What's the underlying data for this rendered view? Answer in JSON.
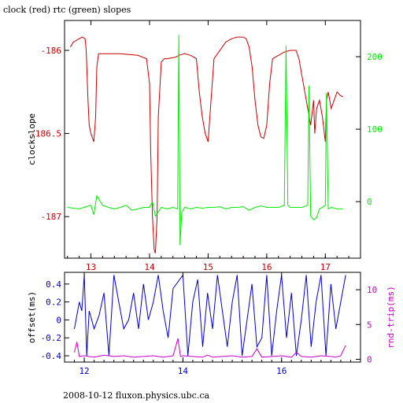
{
  "title": "clock (red) rtc (green) slopes",
  "footer": "2008-10-12 fluxon.physics.ubc.ca",
  "colors": {
    "red": "#cc0000",
    "green": "#00ee00",
    "blue": "#0000cc",
    "magenta": "#cc00cc",
    "axis": "#000000"
  },
  "chart_data": [
    {
      "type": "line",
      "xlim": [
        12.55,
        17.6
      ],
      "x_ticks": [
        "13",
        "14",
        "15",
        "16",
        "17"
      ],
      "left_axis": {
        "label": "clockslope",
        "ylim": [
          -187.25,
          -185.82
        ],
        "ticks": [
          "-186",
          "-186.5",
          "-187"
        ],
        "color": "red"
      },
      "right_axis": {
        "ylim": [
          -78,
          250
        ],
        "ticks": [
          "200",
          "100",
          "0"
        ],
        "color": "green"
      },
      "series": [
        {
          "axis": "left",
          "color": "red",
          "x": [
            12.65,
            12.7,
            12.8,
            12.85,
            12.9,
            12.92,
            12.95,
            12.97,
            13.0,
            13.05,
            13.08,
            13.1,
            13.13,
            13.2,
            13.5,
            13.8,
            13.95,
            14.0,
            14.02,
            14.05,
            14.08,
            14.1,
            14.13,
            14.15,
            14.2,
            14.25,
            14.3,
            14.45,
            14.5,
            14.6,
            14.7,
            14.8,
            14.85,
            14.9,
            14.95,
            15.0,
            15.05,
            15.1,
            15.3,
            15.4,
            15.5,
            15.6,
            15.65,
            15.7,
            15.75,
            15.8,
            15.85,
            15.9,
            15.95,
            16.0,
            16.05,
            16.1,
            16.2,
            16.25,
            16.3,
            16.4,
            16.5,
            16.55,
            16.6,
            16.7,
            16.75,
            16.8,
            16.82,
            16.85,
            16.9,
            16.95,
            17.0,
            17.02,
            17.05,
            17.1,
            17.15,
            17.2,
            17.25,
            17.3
          ],
          "y": [
            -185.98,
            -185.95,
            -185.93,
            -185.92,
            -185.93,
            -186.0,
            -186.3,
            -186.45,
            -186.5,
            -186.55,
            -186.4,
            -186.1,
            -186.02,
            -186.02,
            -186.02,
            -186.03,
            -186.05,
            -186.2,
            -186.6,
            -187.0,
            -187.2,
            -187.22,
            -187.0,
            -186.4,
            -186.07,
            -186.05,
            -186.05,
            -186.04,
            -186.03,
            -186.02,
            -186.03,
            -186.05,
            -186.25,
            -186.4,
            -186.5,
            -186.55,
            -186.3,
            -186.05,
            -185.95,
            -185.93,
            -185.92,
            -185.92,
            -185.93,
            -185.98,
            -186.1,
            -186.3,
            -186.45,
            -186.52,
            -186.53,
            -186.45,
            -186.2,
            -186.05,
            -186.03,
            -186.02,
            -186.01,
            -186.0,
            -186.0,
            -186.05,
            -186.15,
            -186.35,
            -186.45,
            -186.3,
            -186.5,
            -186.35,
            -186.3,
            -186.4,
            -186.55,
            -186.3,
            -186.25,
            -186.35,
            -186.3,
            -186.25,
            -186.27,
            -186.28
          ]
        },
        {
          "axis": "right",
          "color": "green",
          "x": [
            12.6,
            12.8,
            13.0,
            13.05,
            13.1,
            13.2,
            13.3,
            13.4,
            13.5,
            13.6,
            13.7,
            13.8,
            13.9,
            14.0,
            14.05,
            14.1,
            14.2,
            14.3,
            14.4,
            14.48,
            14.5,
            14.52,
            14.55,
            14.6,
            14.7,
            14.8,
            14.9,
            15.0,
            15.1,
            15.2,
            15.3,
            15.4,
            15.5,
            15.6,
            15.7,
            15.8,
            15.9,
            16.0,
            16.1,
            16.2,
            16.3,
            16.33,
            16.36,
            16.4,
            16.5,
            16.6,
            16.7,
            16.72,
            16.75,
            16.8,
            16.85,
            16.9,
            16.95,
            17.0,
            17.02,
            17.05,
            17.1,
            17.2,
            17.3
          ],
          "y": [
            -8,
            -10,
            -5,
            -18,
            8,
            -5,
            -8,
            -10,
            -8,
            -5,
            -12,
            -10,
            -8,
            -8,
            0,
            -20,
            -8,
            -10,
            -8,
            -10,
            230,
            -60,
            -15,
            -8,
            -10,
            -8,
            -9,
            -8,
            -8,
            -7,
            -10,
            -8,
            -8,
            -7,
            -12,
            -8,
            -6,
            -8,
            -8,
            -8,
            -5,
            215,
            -5,
            -8,
            -8,
            -8,
            -5,
            160,
            -20,
            -25,
            -22,
            -10,
            -8,
            -5,
            150,
            -10,
            -8,
            -10,
            -10
          ]
        }
      ]
    },
    {
      "type": "line",
      "xlim": [
        11.6,
        17.6
      ],
      "x_ticks": [
        "12",
        "14",
        "16"
      ],
      "left_axis": {
        "label": "offset(ms)",
        "ylim": [
          -0.47,
          0.53
        ],
        "ticks": [
          "0.4",
          "0.2",
          "0",
          "-0.2",
          "-0.4"
        ],
        "color": "blue"
      },
      "right_axis": {
        "label": "rnd-trip(ms)",
        "ylim": [
          -0.4,
          12.5
        ],
        "ticks": [
          "10",
          "5",
          "0"
        ],
        "color": "magenta"
      },
      "series": [
        {
          "axis": "left",
          "color": "blue",
          "x": [
            11.8,
            11.9,
            11.95,
            12.0,
            12.05,
            12.1,
            12.15,
            12.2,
            12.3,
            12.4,
            12.5,
            12.6,
            12.7,
            12.8,
            12.9,
            13.0,
            13.1,
            13.2,
            13.3,
            13.4,
            13.5,
            13.6,
            13.7,
            13.8,
            14.0,
            14.1,
            14.2,
            14.3,
            14.4,
            14.5,
            14.6,
            14.7,
            14.8,
            14.9,
            15.0,
            15.1,
            15.2,
            15.3,
            15.4,
            15.5,
            15.6,
            15.7,
            15.8,
            15.9,
            16.0,
            16.1,
            16.2,
            16.3,
            16.4,
            16.5,
            16.6,
            16.7,
            16.8,
            16.9,
            17.0,
            17.1,
            17.2,
            17.3
          ],
          "y": [
            -0.1,
            0.2,
            0.1,
            0.5,
            -0.4,
            0.1,
            0.0,
            -0.1,
            0.05,
            0.3,
            -0.4,
            0.5,
            0.2,
            -0.1,
            0.0,
            0.3,
            -0.1,
            0.4,
            0.0,
            0.2,
            0.5,
            0.1,
            -0.2,
            0.35,
            0.5,
            -0.4,
            0.2,
            0.45,
            -0.3,
            0.3,
            -0.1,
            0.5,
            0.1,
            -0.3,
            0.2,
            0.5,
            -0.4,
            0.0,
            0.4,
            -0.3,
            -0.2,
            0.5,
            -0.4,
            0.1,
            0.5,
            -0.2,
            0.3,
            -0.4,
            0.0,
            0.5,
            -0.3,
            0.2,
            0.5,
            -0.4,
            0.4,
            -0.1,
            0.2,
            0.5
          ]
        },
        {
          "axis": "right",
          "color": "magenta",
          "x": [
            11.8,
            11.85,
            11.9,
            12.0,
            12.2,
            12.4,
            12.6,
            12.8,
            13.0,
            13.2,
            13.4,
            13.6,
            13.8,
            13.9,
            13.95,
            14.0,
            14.2,
            14.4,
            14.5,
            14.6,
            14.8,
            15.0,
            15.2,
            15.4,
            15.5,
            15.6,
            15.8,
            16.0,
            16.2,
            16.3,
            16.4,
            16.6,
            16.8,
            17.0,
            17.1,
            17.2,
            17.3
          ],
          "y": [
            1.0,
            2.5,
            0.4,
            0.5,
            0.3,
            0.6,
            0.4,
            0.5,
            0.3,
            0.4,
            0.5,
            0.3,
            0.5,
            3.0,
            0.4,
            0.5,
            0.4,
            0.3,
            0.6,
            0.3,
            0.4,
            0.5,
            0.3,
            0.4,
            1.5,
            0.3,
            0.4,
            0.5,
            0.3,
            1.0,
            0.4,
            0.3,
            0.5,
            0.4,
            0.3,
            0.5,
            2.0
          ]
        }
      ]
    }
  ]
}
